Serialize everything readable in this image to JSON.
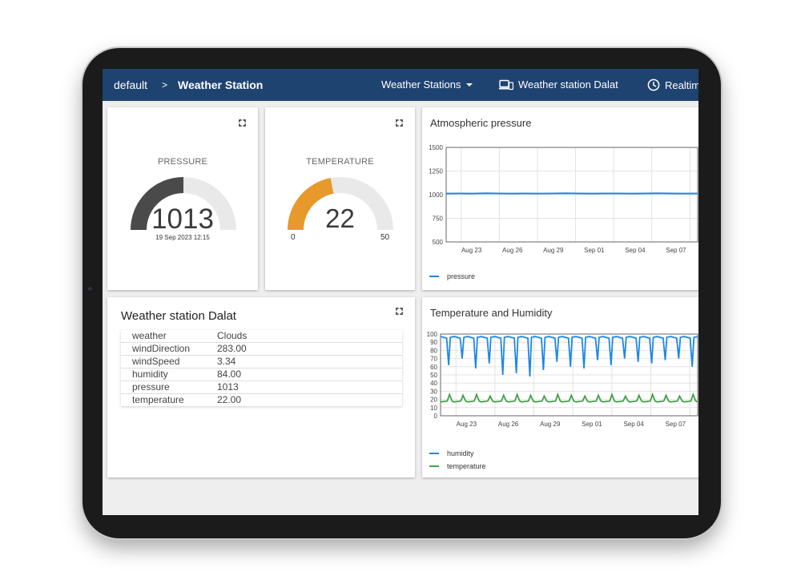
{
  "topbar": {
    "crumb_root": "default",
    "crumb_sep": ">",
    "crumb_current": "Weather Station",
    "states_label": "Weather Stations",
    "entity_label": "Weather station Dalat",
    "time_label": "Realtime"
  },
  "pressure_gauge": {
    "title": "PRESSURE",
    "value": "1013",
    "timestamp": "19 Sep 2023 12:15",
    "fill_fraction": 0.5,
    "color": "#4a4a4a"
  },
  "temperature_gauge": {
    "title": "TEMPERATURE",
    "value": "22",
    "min": "0",
    "max": "50",
    "fill_fraction": 0.44,
    "color": "#e8992c"
  },
  "station_card": {
    "title": "Weather station Dalat",
    "rows": [
      {
        "key": "weather",
        "value": "Clouds"
      },
      {
        "key": "windDirection",
        "value": "283.00"
      },
      {
        "key": "windSpeed",
        "value": "3.34"
      },
      {
        "key": "humidity",
        "value": "84.00"
      },
      {
        "key": "pressure",
        "value": "1013"
      },
      {
        "key": "temperature",
        "value": "22.00"
      }
    ]
  },
  "chart_data": [
    {
      "type": "line",
      "title": "Atmospheric pressure",
      "ylim": [
        500,
        1500
      ],
      "y_ticks": [
        "1500",
        "1250",
        "1000",
        "750",
        "500"
      ],
      "x_ticks": [
        "Aug 23",
        "Aug 26",
        "Aug 29",
        "Sep 01",
        "Sep 04",
        "Sep 07"
      ],
      "x_range": [
        "Aug 21",
        "Sep 09"
      ],
      "grid": true,
      "legend_position": "bottom-left",
      "series": [
        {
          "name": "pressure",
          "color": "#1e88e5",
          "values": [
            1012,
            1013,
            1012,
            1014,
            1013,
            1012,
            1013,
            1012,
            1013,
            1014,
            1013,
            1012,
            1013,
            1013,
            1012,
            1013,
            1014,
            1013,
            1012,
            1013
          ]
        }
      ]
    },
    {
      "type": "line",
      "title": "Temperature and Humidity",
      "ylim": [
        0,
        100
      ],
      "y_ticks": [
        "100",
        "90",
        "80",
        "70",
        "60",
        "50",
        "40",
        "30",
        "20",
        "10",
        "0"
      ],
      "x_ticks": [
        "Aug 23",
        "Aug 26",
        "Aug 29",
        "Sep 01",
        "Sep 04",
        "Sep 07"
      ],
      "x_range": [
        "Aug 21",
        "Sep 09"
      ],
      "grid": true,
      "legend_position": "bottom-left",
      "series": [
        {
          "name": "humidity",
          "color": "#1e88e5",
          "pattern": "daily",
          "day_high": 97,
          "day_lows": [
            62,
            70,
            58,
            64,
            50,
            52,
            48,
            56,
            66,
            60,
            58,
            68,
            62,
            70,
            66,
            64,
            68,
            70,
            60
          ]
        },
        {
          "name": "temperature",
          "color": "#43a047",
          "pattern": "daily",
          "day_low": 17,
          "day_highs": [
            26,
            25,
            26,
            24,
            25,
            26,
            25,
            24,
            26,
            25,
            24,
            25,
            26,
            24,
            25,
            26,
            25,
            24,
            26
          ]
        }
      ]
    }
  ]
}
